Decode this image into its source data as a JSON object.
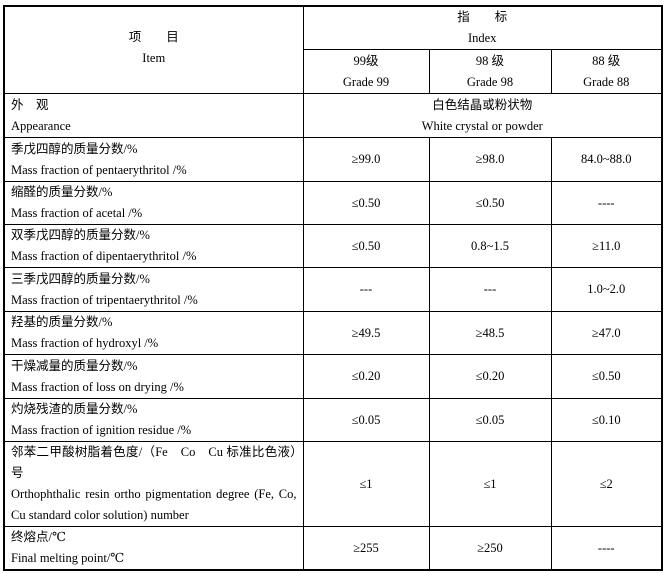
{
  "header": {
    "item_cn": "项　　目",
    "item_en": "Item",
    "index_cn": "指　　标",
    "index_en": "Index",
    "grades": [
      {
        "cn": "99级",
        "en": "Grade 99"
      },
      {
        "cn": "98 级",
        "en": "Grade 98"
      },
      {
        "cn": "88 级",
        "en": "Grade 88"
      }
    ]
  },
  "appearance": {
    "cn": "外　观",
    "en": "Appearance",
    "value_cn": "白色结晶或粉状物",
    "value_en": "White crystal or powder"
  },
  "rows": [
    {
      "cn": "季戊四醇的质量分数/%",
      "en": "Mass fraction of pentaerythritol /%",
      "v": [
        "≥99.0",
        "≥98.0",
        "84.0~88.0"
      ]
    },
    {
      "cn": "缩醛的质量分数/%",
      "en": "Mass fraction of acetal /%",
      "v": [
        "≤0.50",
        "≤0.50",
        "----"
      ]
    },
    {
      "cn": "双季戊四醇的质量分数/%",
      "en": "Mass fraction of dipentaerythritol /%",
      "v": [
        "≤0.50",
        "0.8~1.5",
        "≥11.0"
      ]
    },
    {
      "cn": "三季戊四醇的质量分数/%",
      "en": "Mass fraction of tripentaerythritol /%",
      "v": [
        "---",
        "---",
        "1.0~2.0"
      ]
    },
    {
      "cn": "羟基的质量分数/%",
      "en": "Mass fraction of hydroxyl /%",
      "v": [
        "≥49.5",
        "≥48.5",
        "≥47.0"
      ]
    },
    {
      "cn": "干燥减量的质量分数/%",
      "en": "Mass fraction of loss on drying /%",
      "v": [
        "≤0.20",
        "≤0.20",
        "≤0.50"
      ]
    },
    {
      "cn": "灼烧残渣的质量分数/%",
      "en": "Mass fraction of ignition residue /%",
      "v": [
        "≤0.05",
        "≤0.05",
        "≤0.10"
      ]
    },
    {
      "cn": "邻苯二甲酸树脂着色度/（Fe　Co　Cu 标准比色液）号",
      "en": "Orthophthalic resin ortho pigmentation degree (Fe, Co, Cu standard color solution) number",
      "v": [
        "≤1",
        "≤1",
        "≤2"
      ]
    },
    {
      "cn": "终熔点/℃",
      "en": "Final melting point/℃",
      "v": [
        "≥255",
        "≥250",
        "----"
      ]
    }
  ]
}
